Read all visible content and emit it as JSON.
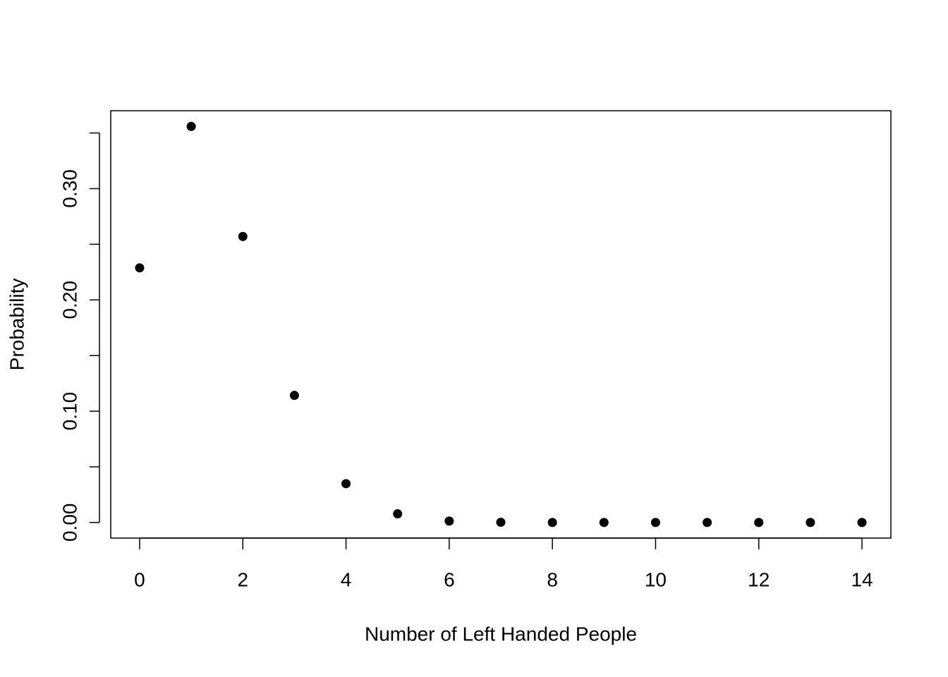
{
  "chart_data": {
    "type": "scatter",
    "x_label": "Number of Left Handed People",
    "y_label": "Probability",
    "x": [
      0,
      1,
      2,
      3,
      4,
      5,
      6,
      7,
      8,
      9,
      10,
      11,
      12,
      13,
      14
    ],
    "values": [
      0.2288,
      0.3559,
      0.257,
      0.1142,
      0.0349,
      0.0078,
      0.0013,
      0.0002,
      0,
      0,
      0,
      0,
      0,
      0,
      0
    ],
    "color": "#000000",
    "xlim": [
      -0.56,
      14.56
    ],
    "ylim": [
      -0.014,
      0.37
    ],
    "xticks": [
      0,
      2,
      4,
      6,
      8,
      10,
      12,
      14
    ],
    "yticks": [
      {
        "value": 0,
        "label": "0.00"
      },
      {
        "value": 0.05,
        "label": null
      },
      {
        "value": 0.1,
        "label": "0.10"
      },
      {
        "value": 0.15,
        "label": null
      },
      {
        "value": 0.2,
        "label": "0.20"
      },
      {
        "value": 0.25,
        "label": null
      },
      {
        "value": 0.3,
        "label": "0.30"
      },
      {
        "value": 0.35,
        "label": null
      }
    ]
  }
}
